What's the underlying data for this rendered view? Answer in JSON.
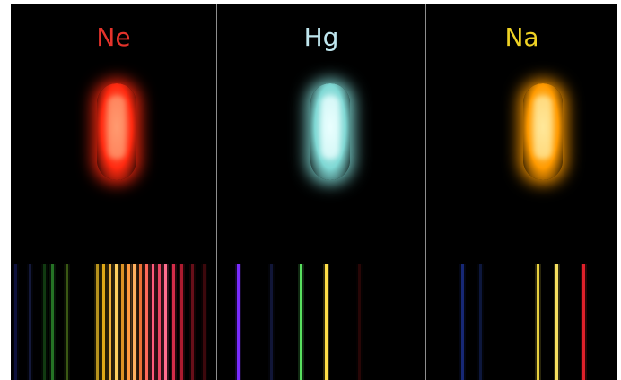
{
  "panels": [
    {
      "label": "Ne",
      "label_color": "#e5332b",
      "lamp_glow": "#ff2a10",
      "lamp_core": "#ff9a70",
      "spectrum_lines": [
        {
          "pos": 0.02,
          "color": "#1b1f70",
          "opacity": 0.5
        },
        {
          "pos": 0.09,
          "color": "#25306a",
          "opacity": 0.5
        },
        {
          "pos": 0.16,
          "color": "#1a5a1a",
          "opacity": 0.6
        },
        {
          "pos": 0.2,
          "color": "#2d8a2d",
          "opacity": 0.8
        },
        {
          "pos": 0.27,
          "color": "#5a8a20",
          "opacity": 0.6
        },
        {
          "pos": 0.42,
          "color": "#c8a020",
          "opacity": 0.9
        },
        {
          "pos": 0.45,
          "color": "#e0a818",
          "opacity": 1.0
        },
        {
          "pos": 0.48,
          "color": "#f2b23a",
          "opacity": 1.0
        },
        {
          "pos": 0.51,
          "color": "#ffd060",
          "opacity": 1.0
        },
        {
          "pos": 0.54,
          "color": "#f0a028",
          "opacity": 0.9
        },
        {
          "pos": 0.57,
          "color": "#ff9a40",
          "opacity": 1.0
        },
        {
          "pos": 0.6,
          "color": "#ffb060",
          "opacity": 1.0
        },
        {
          "pos": 0.63,
          "color": "#ff7a3a",
          "opacity": 0.9
        },
        {
          "pos": 0.66,
          "color": "#ff6a5a",
          "opacity": 1.0
        },
        {
          "pos": 0.69,
          "color": "#ff5a7a",
          "opacity": 1.0
        },
        {
          "pos": 0.72,
          "color": "#ff4a6a",
          "opacity": 0.9
        },
        {
          "pos": 0.75,
          "color": "#ff6e8e",
          "opacity": 1.0
        },
        {
          "pos": 0.79,
          "color": "#e83050",
          "opacity": 0.9
        },
        {
          "pos": 0.83,
          "color": "#d0203a",
          "opacity": 0.8
        },
        {
          "pos": 0.88,
          "color": "#a01828",
          "opacity": 0.6
        },
        {
          "pos": 0.94,
          "color": "#701018",
          "opacity": 0.5
        }
      ]
    },
    {
      "label": "Hg",
      "label_color": "#bfe6ee",
      "lamp_glow": "#7fd8d4",
      "lamp_core": "#eaffff",
      "spectrum_lines": [
        {
          "pos": 0.1,
          "color": "#7a2cff",
          "opacity": 1.0
        },
        {
          "pos": 0.26,
          "color": "#202868",
          "opacity": 0.5
        },
        {
          "pos": 0.4,
          "color": "#58e060",
          "opacity": 1.0
        },
        {
          "pos": 0.52,
          "color": "#ffe048",
          "opacity": 1.0
        },
        {
          "pos": 0.68,
          "color": "#5a1010",
          "opacity": 0.4
        }
      ]
    },
    {
      "label": "Na",
      "label_color": "#efd225",
      "lamp_glow": "#ff9a00",
      "lamp_core": "#ffe89a",
      "spectrum_lines": [
        {
          "pos": 0.19,
          "color": "#2036a0",
          "opacity": 0.7
        },
        {
          "pos": 0.28,
          "color": "#1a2a70",
          "opacity": 0.5
        },
        {
          "pos": 0.58,
          "color": "#e8d040",
          "opacity": 1.0
        },
        {
          "pos": 0.68,
          "color": "#f6e060",
          "opacity": 1.0
        },
        {
          "pos": 0.82,
          "color": "#e0202a",
          "opacity": 1.0
        }
      ]
    }
  ]
}
